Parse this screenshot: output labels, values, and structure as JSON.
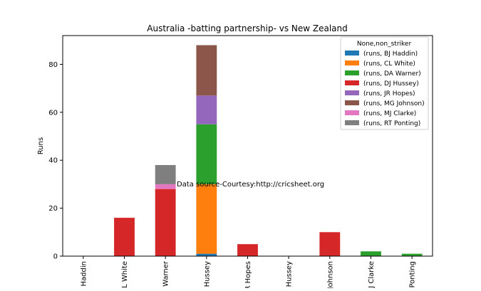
{
  "chart_data": {
    "type": "bar",
    "stacked": true,
    "title": "Australia -batting partnership- vs New Zealand",
    "xlabel": "",
    "ylabel": "Runs",
    "ylim": [
      0,
      92
    ],
    "yticks": [
      0,
      20,
      40,
      60,
      80
    ],
    "grid": false,
    "legend_title": "None,non_striker",
    "legend_position": "top-right",
    "annotation": "Data source-Courtesy:http://cricsheet.org",
    "categories": [
      "BJ Haddin",
      "CL White",
      "DA Warner",
      "DJ Hussey",
      "JR Hopes",
      "MEK Hussey",
      "MG Johnson",
      "MJ Clarke",
      "RT Ponting"
    ],
    "series": [
      {
        "name": "(runs, BJ Haddin)",
        "color": "#1f77b4",
        "values": [
          0,
          0,
          0,
          1,
          0,
          0,
          0,
          0,
          0
        ]
      },
      {
        "name": "(runs, CL White)",
        "color": "#ff7f0e",
        "values": [
          0,
          0,
          0,
          29,
          0,
          0,
          0,
          0,
          0
        ]
      },
      {
        "name": "(runs, DA Warner)",
        "color": "#2ca02c",
        "values": [
          0,
          0,
          0,
          25,
          0,
          0,
          0,
          2,
          1
        ]
      },
      {
        "name": "(runs, DJ Hussey)",
        "color": "#d62728",
        "values": [
          0,
          16,
          28,
          0,
          5,
          0,
          10,
          0,
          0
        ]
      },
      {
        "name": "(runs, JR Hopes)",
        "color": "#9467bd",
        "values": [
          0,
          0,
          0,
          12,
          0,
          0,
          0,
          0,
          0
        ]
      },
      {
        "name": "(runs, MG Johnson)",
        "color": "#8c564b",
        "values": [
          0,
          0,
          0,
          21,
          0,
          0,
          0,
          0,
          0
        ]
      },
      {
        "name": "(runs, MJ Clarke)",
        "color": "#e377c2",
        "values": [
          0,
          0,
          2,
          0,
          0,
          0,
          0,
          0,
          0
        ]
      },
      {
        "name": "(runs, RT Ponting)",
        "color": "#7f7f7f",
        "values": [
          0,
          0,
          8,
          0,
          0,
          0,
          0,
          0,
          0
        ]
      }
    ]
  }
}
